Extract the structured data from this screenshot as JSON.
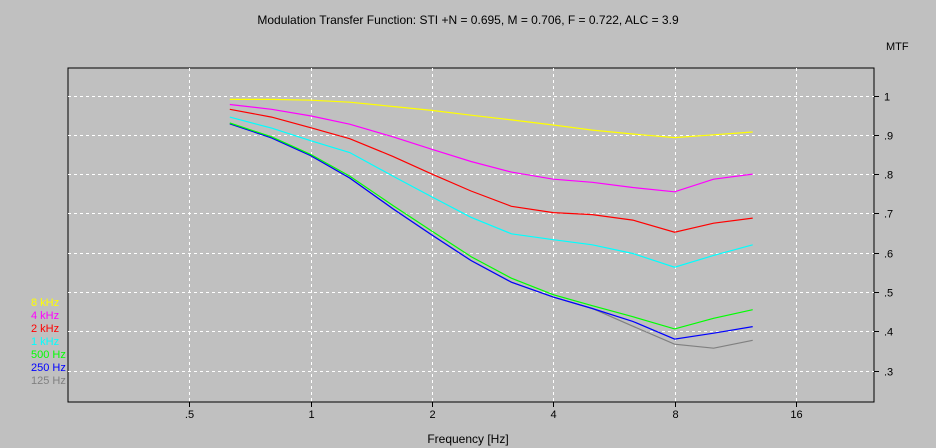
{
  "chart_data": {
    "type": "line",
    "title": "Modulation Transfer Function: STI +N = 0.695, M = 0.706, F = 0.722, ALC =   3.9",
    "xlabel": "Frequency [Hz]",
    "ylabel": "MTF",
    "xscale": "log2",
    "xlim": [
      0.25,
      25
    ],
    "ylim": [
      0.22,
      1.07
    ],
    "grid": true,
    "legend_position": "left-bottom",
    "x_ticks": [
      {
        "value": 0.5,
        "label": ".5"
      },
      {
        "value": 1,
        "label": "1"
      },
      {
        "value": 2,
        "label": "2"
      },
      {
        "value": 4,
        "label": "4"
      },
      {
        "value": 8,
        "label": "8"
      },
      {
        "value": 16,
        "label": "16"
      }
    ],
    "y_ticks": [
      {
        "value": 1.0,
        "label": "1"
      },
      {
        "value": 0.9,
        "label": ".9"
      },
      {
        "value": 0.8,
        "label": ".8"
      },
      {
        "value": 0.7,
        "label": ".7"
      },
      {
        "value": 0.6,
        "label": ".6"
      },
      {
        "value": 0.5,
        "label": ".5"
      },
      {
        "value": 0.4,
        "label": ".4"
      },
      {
        "value": 0.3,
        "label": ".3"
      }
    ],
    "x": [
      0.63,
      0.8,
      1.0,
      1.25,
      1.6,
      2.0,
      2.5,
      3.15,
      4.0,
      5.0,
      6.3,
      8.0,
      10.0,
      12.5
    ],
    "series": [
      {
        "name": "8 kHz",
        "color": "#ffff00",
        "values": [
          0.99,
          0.99,
          0.988,
          0.983,
          0.972,
          0.962,
          0.95,
          0.938,
          0.925,
          0.912,
          0.902,
          0.893,
          0.9,
          0.907
        ]
      },
      {
        "name": "4 kHz",
        "color": "#ff00ff",
        "values": [
          0.977,
          0.965,
          0.948,
          0.927,
          0.895,
          0.863,
          0.832,
          0.805,
          0.787,
          0.779,
          0.766,
          0.755,
          0.787,
          0.8
        ]
      },
      {
        "name": "2 kHz",
        "color": "#ff0000",
        "values": [
          0.965,
          0.945,
          0.918,
          0.89,
          0.845,
          0.8,
          0.757,
          0.718,
          0.702,
          0.697,
          0.683,
          0.652,
          0.675,
          0.688
        ]
      },
      {
        "name": "1 kHz",
        "color": "#00ffff",
        "values": [
          0.945,
          0.917,
          0.885,
          0.855,
          0.795,
          0.742,
          0.69,
          0.648,
          0.633,
          0.62,
          0.598,
          0.563,
          0.593,
          0.62
        ]
      },
      {
        "name": "500 Hz",
        "color": "#00ff00",
        "values": [
          0.93,
          0.895,
          0.85,
          0.795,
          0.72,
          0.655,
          0.59,
          0.535,
          0.493,
          0.465,
          0.437,
          0.406,
          0.433,
          0.455
        ]
      },
      {
        "name": "250 Hz",
        "color": "#0000ff",
        "values": [
          0.928,
          0.892,
          0.847,
          0.79,
          0.712,
          0.645,
          0.58,
          0.525,
          0.487,
          0.458,
          0.425,
          0.38,
          0.395,
          0.412
        ]
      },
      {
        "name": "125 Hz",
        "color": "#808080",
        "values": [
          0.928,
          0.892,
          0.847,
          0.79,
          0.712,
          0.645,
          0.58,
          0.525,
          0.487,
          0.458,
          0.413,
          0.367,
          0.357,
          0.377
        ]
      }
    ]
  }
}
